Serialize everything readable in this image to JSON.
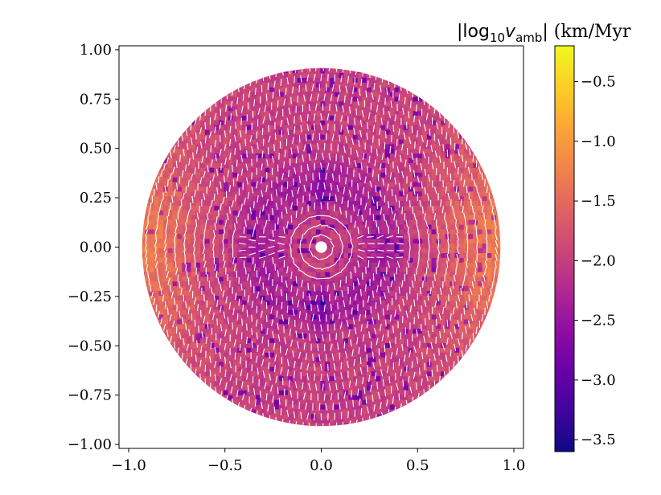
{
  "chart_data": {
    "type": "heatmap",
    "title": "",
    "xlabel": "",
    "ylabel": "",
    "xlim": [
      -1.05,
      1.05
    ],
    "ylim": [
      -1.02,
      1.02
    ],
    "x_ticks": [
      -1.0,
      -0.5,
      0.0,
      0.5,
      1.0
    ],
    "x_tick_labels": [
      "−1.0",
      "−0.5",
      "0.0",
      "0.5",
      "1.0"
    ],
    "y_ticks": [
      1.0,
      0.75,
      0.5,
      0.25,
      0.0,
      -0.25,
      -0.5,
      -0.75,
      -1.0
    ],
    "y_tick_labels": [
      "1.00",
      "0.75",
      "0.50",
      "0.25",
      "0.00",
      "−0.25",
      "−0.50",
      "−0.75",
      "−1.00"
    ],
    "disk_radius": 0.93,
    "inner_hole_radius": 0.03,
    "field": "ambipolar drift velocity, colored by log10 magnitude, white arrows show direction",
    "colorbar": {
      "label_prefix": "|log",
      "label_sub": "10",
      "label_var": "v",
      "label_var_sub": "amb",
      "label_suffix": "| (km/Myr",
      "colormap": "plasma",
      "range": [
        -3.6,
        -0.2
      ],
      "ticks": [
        -0.5,
        -1.0,
        -1.5,
        -2.0,
        -2.5,
        -3.0,
        -3.5
      ],
      "tick_labels": [
        "−0.5",
        "−1.0",
        "−1.5",
        "−2.0",
        "−2.5",
        "−3.0",
        "−3.5"
      ],
      "colors": [
        "#0d0887",
        "#41049d",
        "#6a00a8",
        "#8f0da4",
        "#b12a90",
        "#cc4778",
        "#e16462",
        "#f2844b",
        "#fca636",
        "#fcce25",
        "#f0f921"
      ]
    }
  }
}
